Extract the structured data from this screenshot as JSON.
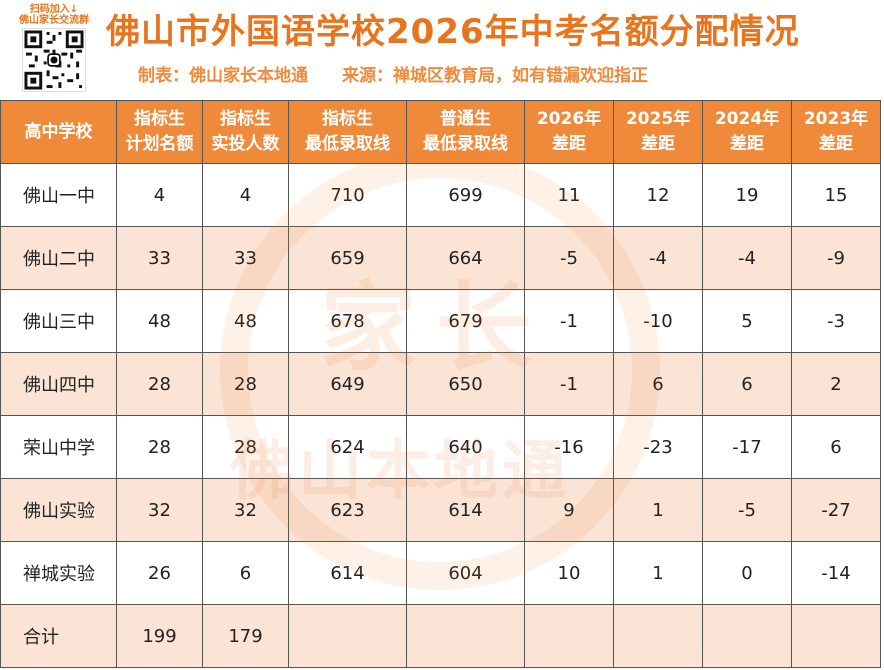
{
  "header": {
    "qr_caption_line1": "扫码加入↓",
    "qr_caption_line2": "佛山家长交流群",
    "title": "佛山市外国语学校2026年中考名额分配情况",
    "maker": "制表：佛山家长本地通",
    "source": "来源：禅城区教育局，如有错漏欢迎指正"
  },
  "watermark": {
    "big": "家长",
    "small": "佛山本地通"
  },
  "table": {
    "headers": [
      [
        "高中学校",
        ""
      ],
      [
        "指标生",
        "计划名额"
      ],
      [
        "指标生",
        "实投人数"
      ],
      [
        "指标生",
        "最低录取线"
      ],
      [
        "普通生",
        "最低录取线"
      ],
      [
        "2026年",
        "差距"
      ],
      [
        "2025年",
        "差距"
      ],
      [
        "2024年",
        "差距"
      ],
      [
        "2023年",
        "差距"
      ]
    ],
    "rows": [
      [
        "佛山一中",
        "4",
        "4",
        "710",
        "699",
        "11",
        "12",
        "19",
        "15"
      ],
      [
        "佛山二中",
        "33",
        "33",
        "659",
        "664",
        "-5",
        "-4",
        "-4",
        "-9"
      ],
      [
        "佛山三中",
        "48",
        "48",
        "678",
        "679",
        "-1",
        "-10",
        "5",
        "-3"
      ],
      [
        "佛山四中",
        "28",
        "28",
        "649",
        "650",
        "-1",
        "6",
        "6",
        "2"
      ],
      [
        "荣山中学",
        "28",
        "28",
        "624",
        "640",
        "-16",
        "-23",
        "-17",
        "6"
      ],
      [
        "佛山实验",
        "32",
        "32",
        "623",
        "614",
        "9",
        "1",
        "-5",
        "-27"
      ],
      [
        "禅城实验",
        "26",
        "6",
        "614",
        "604",
        "10",
        "1",
        "0",
        "-14"
      ],
      [
        "合计",
        "199",
        "179",
        "",
        "",
        "",
        "",
        "",
        ""
      ]
    ]
  },
  "colors": {
    "accent": "#e8741e",
    "header_bg": "#ef8a3a",
    "stripe": "#fbe4d6"
  }
}
